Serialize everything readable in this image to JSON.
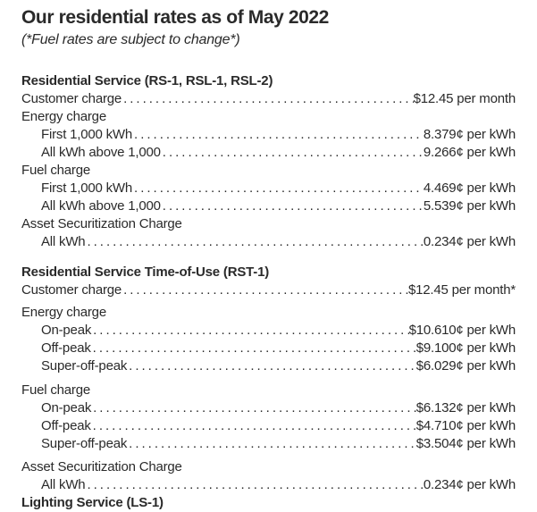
{
  "page": {
    "title": "Our residential rates as of May 2022",
    "subtitle": "(*Fuel rates are subject to change*)"
  },
  "sections": [
    {
      "heading": "Residential Service (RS-1, RSL-1, RSL-2)",
      "rows": [
        {
          "label": "Customer charge",
          "value": "$12.45 per month"
        },
        {
          "label": "Energy charge"
        },
        {
          "label": "First 1,000 kWh",
          "value": "8.379¢ per kWh"
        },
        {
          "label": "All kWh above 1,000",
          "value": "9.266¢ per kWh"
        },
        {
          "label": "Fuel charge"
        },
        {
          "label": "First 1,000 kWh",
          "value": "4.469¢ per kWh"
        },
        {
          "label": "All kWh above 1,000",
          "value": "5.539¢ per kWh"
        },
        {
          "label": "Asset Securitization Charge"
        },
        {
          "label": "All kWh",
          "value": "0.234¢ per kWh"
        }
      ]
    },
    {
      "heading": "Residential Service Time-of-Use (RST-1)",
      "rows": [
        {
          "label": "Customer charge",
          "value": "$12.45 per month*"
        },
        {
          "label": "Energy charge"
        },
        {
          "label": "On-peak",
          "value": "$10.610¢ per kWh"
        },
        {
          "label": "Off-peak",
          "value": "$9.100¢ per kWh"
        },
        {
          "label": "Super-off-peak",
          "value": "$6.029¢ per kWh"
        },
        {
          "label": "Fuel charge"
        },
        {
          "label": "On-peak",
          "value": "$6.132¢ per kWh"
        },
        {
          "label": "Off-peak",
          "value": "$4.710¢ per kWh"
        },
        {
          "label": "Super-off-peak",
          "value": "$3.504¢ per kWh"
        },
        {
          "label": "Asset Securitization Charge"
        },
        {
          "label": "All kWh",
          "value": "0.234¢ per kWh"
        }
      ]
    }
  ],
  "next_section": {
    "heading": "Lighting Service (LS-1)"
  },
  "colors": {
    "text": "#2a2a2a",
    "background": "#ffffff"
  }
}
